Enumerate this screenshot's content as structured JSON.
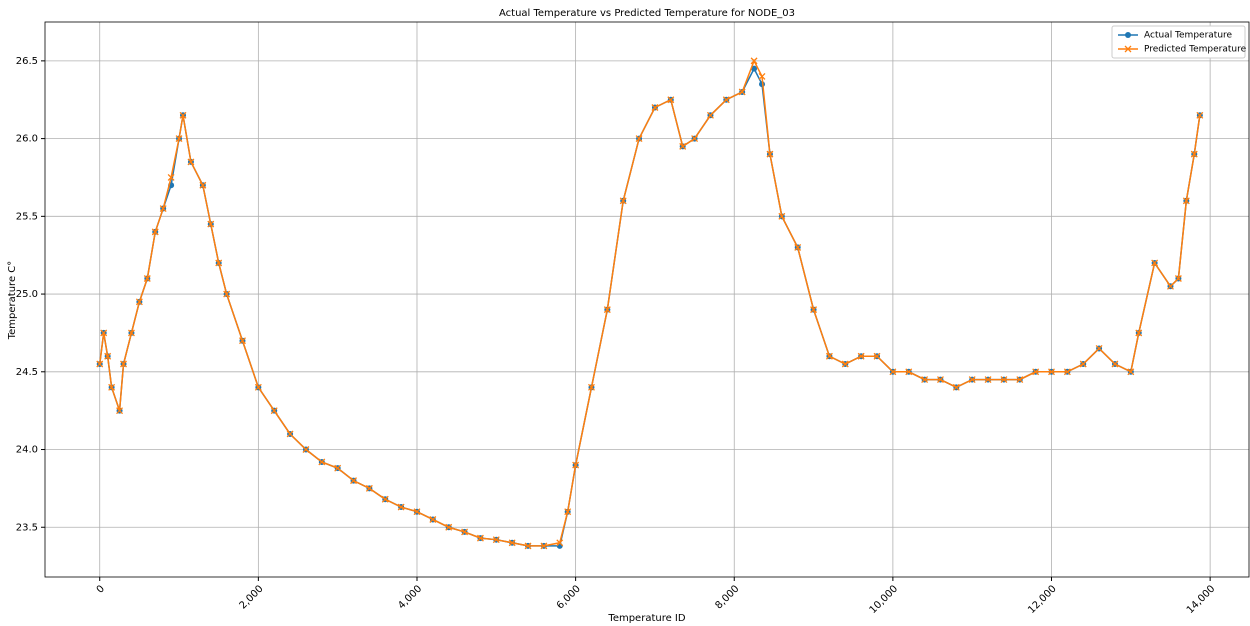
{
  "chart_data": {
    "type": "line",
    "title": "Actual Temperature vs Predicted Temperature for NODE_03",
    "xlabel": "Temperature ID",
    "ylabel": "Temperature C°",
    "x": [
      0,
      50,
      100,
      150,
      250,
      300,
      400,
      500,
      600,
      700,
      800,
      900,
      1000,
      1050,
      1150,
      1300,
      1400,
      1500,
      1600,
      1800,
      2000,
      2200,
      2400,
      2600,
      2800,
      3000,
      3200,
      3400,
      3600,
      3800,
      4000,
      4200,
      4400,
      4600,
      4800,
      5000,
      5200,
      5400,
      5600,
      5800,
      5900,
      6000,
      6200,
      6400,
      6600,
      6800,
      7000,
      7200,
      7350,
      7500,
      7700,
      7900,
      8100,
      8250,
      8350,
      8450,
      8600,
      8800,
      9000,
      9200,
      9400,
      9600,
      9800,
      10000,
      10200,
      10400,
      10600,
      10800,
      11000,
      11200,
      11400,
      11600,
      11800,
      12000,
      12200,
      12400,
      12600,
      12800,
      13000,
      13100,
      13300,
      13500,
      13600,
      13700,
      13800,
      13870
    ],
    "series": [
      {
        "name": "Actual Temperature",
        "color": "#1f77b4",
        "marker": "o",
        "values": [
          24.55,
          24.75,
          24.6,
          24.4,
          24.25,
          24.55,
          24.75,
          24.95,
          25.1,
          25.4,
          25.55,
          25.7,
          26.0,
          26.15,
          25.85,
          25.7,
          25.45,
          25.2,
          25.0,
          24.7,
          24.4,
          24.25,
          24.1,
          24.0,
          23.92,
          23.88,
          23.8,
          23.75,
          23.68,
          23.63,
          23.6,
          23.55,
          23.5,
          23.47,
          23.43,
          23.42,
          23.4,
          23.38,
          23.38,
          23.38,
          23.6,
          23.9,
          24.4,
          24.9,
          25.6,
          26.0,
          26.2,
          26.25,
          25.95,
          26.0,
          26.15,
          26.25,
          26.3,
          26.45,
          26.35,
          25.9,
          25.5,
          25.3,
          24.9,
          24.6,
          24.55,
          24.6,
          24.6,
          24.5,
          24.5,
          24.45,
          24.45,
          24.4,
          24.45,
          24.45,
          24.45,
          24.45,
          24.5,
          24.5,
          24.5,
          24.55,
          24.65,
          24.55,
          24.5,
          24.75,
          25.2,
          25.05,
          25.1,
          25.6,
          25.9,
          26.15
        ]
      },
      {
        "name": "Predicted Temperature",
        "color": "#ff7f0e",
        "marker": "x",
        "values": [
          24.55,
          24.75,
          24.6,
          24.4,
          24.25,
          24.55,
          24.75,
          24.95,
          25.1,
          25.4,
          25.55,
          25.75,
          26.0,
          26.15,
          25.85,
          25.7,
          25.45,
          25.2,
          25.0,
          24.7,
          24.4,
          24.25,
          24.1,
          24.0,
          23.92,
          23.88,
          23.8,
          23.75,
          23.68,
          23.63,
          23.6,
          23.55,
          23.5,
          23.47,
          23.43,
          23.42,
          23.4,
          23.38,
          23.38,
          23.4,
          23.6,
          23.9,
          24.4,
          24.9,
          25.6,
          26.0,
          26.2,
          26.25,
          25.95,
          26.0,
          26.15,
          26.25,
          26.3,
          26.5,
          26.4,
          25.9,
          25.5,
          25.3,
          24.9,
          24.6,
          24.55,
          24.6,
          24.6,
          24.5,
          24.5,
          24.45,
          24.45,
          24.4,
          24.45,
          24.45,
          24.45,
          24.45,
          24.5,
          24.5,
          24.5,
          24.55,
          24.65,
          24.55,
          24.5,
          24.75,
          25.2,
          25.05,
          25.1,
          25.6,
          25.9,
          26.15
        ]
      }
    ],
    "xlim": [
      -690,
      14490
    ],
    "ylim": [
      23.18,
      26.75
    ],
    "xticks": [
      0,
      {
        "value": 2000,
        "label": "2,000"
      },
      {
        "value": 4000,
        "label": "4,000"
      },
      {
        "value": 6000,
        "label": "6,000"
      },
      {
        "value": 8000,
        "label": "8,000"
      },
      {
        "value": 10000,
        "label": "10,000"
      },
      {
        "value": 12000,
        "label": "12,000"
      },
      {
        "value": 14000,
        "label": "14,000"
      }
    ],
    "yticks": [
      23.5,
      {
        "value": 24,
        "label": "24.0"
      },
      24.5,
      {
        "value": 25,
        "label": "25.0"
      },
      25.5,
      {
        "value": 26,
        "label": "26.0"
      },
      26.5
    ],
    "grid": true,
    "legend": "upper right"
  }
}
